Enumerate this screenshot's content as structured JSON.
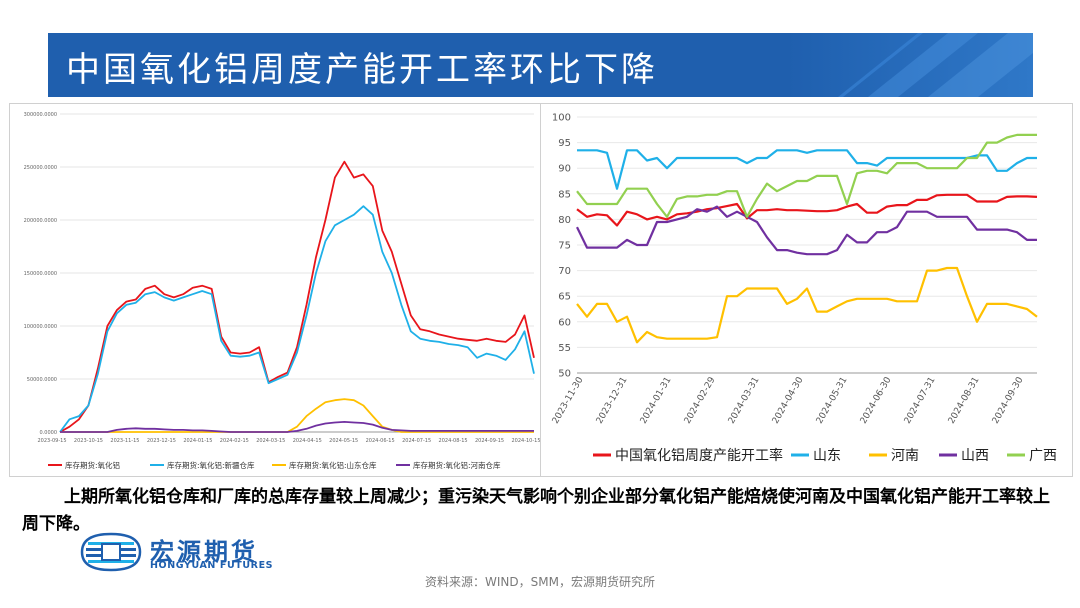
{
  "slide": {
    "title": "中国氧化铝周度产能开工率环比下降",
    "note": "上期所氧化铝仓库和厂库的总库存量较上周减少；重污染天气影响个别企业部分氧化铝产能焙烧使河南及中国氧化铝产能开工率较上周下降。",
    "source": "资料来源：WIND，SMM，宏源期货研究所",
    "logo_cn": "宏源期货",
    "logo_en": "HONGYUAN FUTURES"
  },
  "colors": {
    "banner": "#1f5fae",
    "red": "#e8151b",
    "blue": "#1fb0e8",
    "yellow": "#ffc000",
    "purple": "#7030a0",
    "green": "#92d050"
  },
  "chart_data": [
    {
      "type": "line",
      "ylim": [
        0,
        300000
      ],
      "yticks": [
        "0.0000",
        "50000.0000",
        "100000.0000",
        "150000.0000",
        "200000.0000",
        "250000.0000",
        "300000.0000"
      ],
      "xticks": [
        "2023-09-15",
        "2023-10-15",
        "2023-11-15",
        "2023-12-15",
        "2024-01-15",
        "2024-02-15",
        "2024-03-15",
        "2024-04-15",
        "2024-05-15",
        "2024-06-15",
        "2024-07-15",
        "2024-08-15",
        "2024-09-15",
        "2024-10-15"
      ],
      "x": [
        0,
        0.02,
        0.04,
        0.06,
        0.08,
        0.1,
        0.12,
        0.14,
        0.16,
        0.18,
        0.2,
        0.22,
        0.24,
        0.26,
        0.28,
        0.3,
        0.32,
        0.34,
        0.36,
        0.38,
        0.4,
        0.42,
        0.44,
        0.46,
        0.48,
        0.5,
        0.52,
        0.54,
        0.56,
        0.58,
        0.6,
        0.62,
        0.64,
        0.66,
        0.68,
        0.7,
        0.72,
        0.74,
        0.76,
        0.78,
        0.8,
        0.82,
        0.84,
        0.86,
        0.88,
        0.9,
        0.92,
        0.94,
        0.96,
        0.98,
        1
      ],
      "series": [
        {
          "name": "库存期货:氧化铝",
          "color": "red",
          "values": [
            0,
            5000,
            12000,
            25000,
            60000,
            100000,
            115000,
            123000,
            125000,
            135000,
            138000,
            130000,
            127000,
            130000,
            136000,
            138000,
            135000,
            90000,
            75000,
            74000,
            75000,
            80000,
            47000,
            52000,
            56000,
            80000,
            120000,
            165000,
            200000,
            240000,
            255000,
            240000,
            243000,
            232000,
            190000,
            170000,
            140000,
            110000,
            97000,
            95000,
            92000,
            90000,
            88000,
            87000,
            86000,
            88000,
            86000,
            85000,
            92000,
            110000,
            70000
          ]
        },
        {
          "name": "库存期货:氧化铝:新疆仓库",
          "color": "blue",
          "values": [
            0,
            12000,
            15000,
            25000,
            55000,
            95000,
            112000,
            120000,
            122000,
            130000,
            132000,
            127000,
            124000,
            127000,
            130000,
            133000,
            130000,
            86000,
            72000,
            71000,
            72000,
            75000,
            46000,
            50000,
            54000,
            75000,
            110000,
            150000,
            180000,
            195000,
            200000,
            205000,
            213000,
            205000,
            170000,
            150000,
            120000,
            95000,
            88000,
            86000,
            85000,
            83000,
            82000,
            80000,
            70000,
            74000,
            72000,
            68000,
            78000,
            95000,
            55000
          ]
        },
        {
          "name": "库存期货:氧化铝:山东仓库",
          "color": "yellow",
          "values": [
            0,
            0,
            0,
            0,
            0,
            0,
            0,
            0,
            0,
            0,
            0,
            0,
            0,
            0,
            0,
            0,
            0,
            0,
            0,
            0,
            0,
            0,
            0,
            0,
            0,
            5000,
            15000,
            22000,
            28000,
            30000,
            31000,
            30000,
            25000,
            15000,
            5000,
            2000,
            0,
            0,
            0,
            0,
            0,
            0,
            0,
            0,
            0,
            0,
            0,
            0,
            0,
            0,
            0
          ]
        },
        {
          "name": "库存期货:氧化铝:河南仓库",
          "color": "purple",
          "values": [
            0,
            0,
            0,
            0,
            0,
            0,
            2000,
            3000,
            3500,
            3000,
            3000,
            2500,
            2000,
            2000,
            1500,
            1500,
            1000,
            500,
            0,
            0,
            0,
            0,
            0,
            0,
            0,
            1000,
            3000,
            6000,
            8000,
            9000,
            9500,
            9000,
            8500,
            7000,
            4000,
            2000,
            1500,
            1000,
            1000,
            1000,
            1000,
            1000,
            1000,
            1000,
            1000,
            1000,
            1000,
            1000,
            1000,
            1000,
            1000
          ]
        }
      ]
    },
    {
      "type": "line",
      "ylim": [
        50,
        100
      ],
      "yticks": [
        "50",
        "55",
        "60",
        "65",
        "70",
        "75",
        "80",
        "85",
        "90",
        "95",
        "100"
      ],
      "xticks": [
        "2023-11-30",
        "2023-12-31",
        "2024-01-31",
        "2024-02-29",
        "2024-03-31",
        "2024-04-30",
        "2024-05-31",
        "2024-06-30",
        "2024-07-31",
        "2024-08-31",
        "2024-09-30"
      ],
      "x": [
        0,
        0.0217,
        0.0435,
        0.0652,
        0.087,
        0.1087,
        0.1304,
        0.1522,
        0.1739,
        0.1957,
        0.2174,
        0.2391,
        0.2609,
        0.2826,
        0.3043,
        0.3261,
        0.3478,
        0.3696,
        0.3913,
        0.413,
        0.4348,
        0.4565,
        0.4783,
        0.5,
        0.5217,
        0.5435,
        0.5652,
        0.587,
        0.6087,
        0.6304,
        0.6522,
        0.6739,
        0.6957,
        0.7174,
        0.7391,
        0.7609,
        0.7826,
        0.8043,
        0.8261,
        0.8478,
        0.8696,
        0.8913,
        0.913,
        0.9348,
        0.9565,
        0.9783,
        1
      ],
      "series": [
        {
          "name": "中国氧化铝周度产能开工率",
          "color": "red",
          "values": [
            82,
            80.5,
            81,
            80.8,
            78.8,
            81.5,
            81,
            80,
            80.5,
            80,
            81,
            81.2,
            81.5,
            82,
            82.2,
            82.6,
            83,
            80.2,
            81.8,
            81.8,
            82,
            81.8,
            81.8,
            81.7,
            81.6,
            81.6,
            81.8,
            82.5,
            83,
            81.3,
            81.3,
            82.5,
            82.8,
            82.8,
            83.8,
            83.8,
            84.7,
            84.8,
            84.8,
            84.8,
            83.5,
            83.5,
            83.5,
            84.4,
            84.5,
            84.5,
            84.4
          ]
        },
        {
          "name": "山东",
          "color": "blue",
          "values": [
            93.5,
            93.5,
            93.5,
            93,
            86,
            93.5,
            93.5,
            91.5,
            92,
            90,
            92,
            92,
            92,
            92,
            92,
            92,
            92,
            91,
            92,
            92,
            93.5,
            93.5,
            93.5,
            93,
            93.5,
            93.5,
            93.5,
            93.5,
            91,
            91,
            90.5,
            92,
            92,
            92,
            92,
            92,
            92,
            92,
            92,
            92,
            92.5,
            92.5,
            89.5,
            89.5,
            91,
            92,
            92
          ]
        },
        {
          "name": "河南",
          "color": "yellow",
          "values": [
            63.5,
            61,
            63.5,
            63.5,
            60,
            61,
            56,
            58,
            57,
            56.7,
            56.7,
            56.7,
            56.7,
            56.7,
            57,
            65,
            65,
            66.5,
            66.5,
            66.5,
            66.5,
            63.5,
            64.5,
            66.5,
            62,
            62,
            63,
            64,
            64.5,
            64.5,
            64.5,
            64.5,
            64,
            64,
            64,
            70,
            70,
            70.5,
            70.5,
            65,
            60,
            63.5,
            63.5,
            63.5,
            63,
            62.5,
            61
          ]
        },
        {
          "name": "山西",
          "color": "purple",
          "values": [
            78.5,
            74.5,
            74.5,
            74.5,
            74.5,
            76,
            75,
            75,
            79.5,
            79.5,
            80,
            80.5,
            82,
            81.5,
            82.5,
            80.5,
            81.5,
            80.5,
            79.5,
            76.5,
            74,
            74,
            73.5,
            73.2,
            73.2,
            73.2,
            74,
            77,
            75.5,
            75.5,
            77.5,
            77.5,
            78.5,
            81.5,
            81.5,
            81.5,
            80.5,
            80.5,
            80.5,
            80.5,
            78,
            78,
            78,
            78,
            77.5,
            76,
            76
          ]
        },
        {
          "name": "广西",
          "color": "green",
          "values": [
            85.5,
            83,
            83,
            83,
            83,
            86,
            86,
            86,
            83,
            80.5,
            84,
            84.5,
            84.5,
            84.8,
            84.8,
            85.5,
            85.5,
            80.5,
            84,
            87,
            85.5,
            86.5,
            87.5,
            87.5,
            88.5,
            88.5,
            88.5,
            83,
            89,
            89.5,
            89.5,
            89,
            91,
            91,
            91,
            90,
            90,
            90,
            90,
            92,
            92,
            95,
            95,
            96,
            96.5,
            96.5,
            96.5
          ]
        }
      ]
    }
  ]
}
